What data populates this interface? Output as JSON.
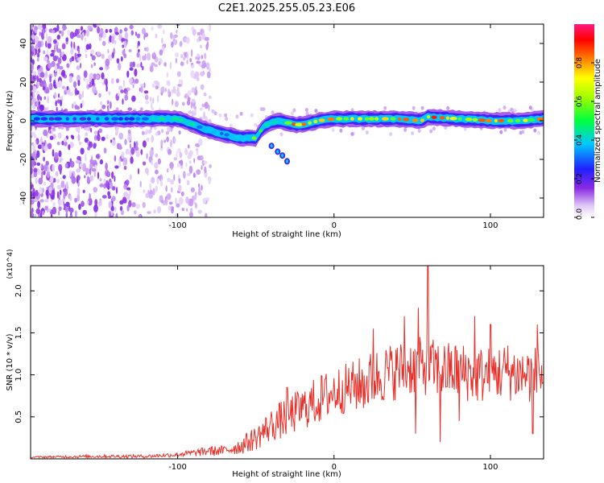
{
  "title": "C2E1.2025.255.05.23.E06",
  "chart_data": [
    {
      "type": "heatmap",
      "xlabel": "Height of straight line (km)",
      "ylabel": "Frequency (Hz)",
      "xlim": [
        -194,
        134
      ],
      "ylim": [
        -50,
        50
      ],
      "xticks": [
        -100,
        0,
        100
      ],
      "xtick_labels": [
        "-100",
        "0",
        "100"
      ],
      "yticks": [
        -40,
        -20,
        0,
        20,
        40
      ],
      "ytick_labels": [
        "-40",
        "-20",
        "0",
        "20",
        "40"
      ],
      "colorbar": {
        "label": "Normalized spectral amplitude",
        "range": [
          0,
          1
        ],
        "ticks": [
          0.0,
          0.2,
          0.4,
          0.6,
          0.8
        ],
        "tick_labels": [
          "0.0",
          "0.2",
          "0.4",
          "0.6",
          "0.8"
        ]
      },
      "ridge": {
        "name": "main-frequency-ridge",
        "x": [
          -194,
          -170,
          -150,
          -130,
          -110,
          -100,
          -90,
          -80,
          -70,
          -60,
          -50,
          -45,
          -40,
          -35,
          -30,
          -25,
          -20,
          -10,
          0,
          20,
          40,
          56,
          60,
          80,
          100,
          120,
          134
        ],
        "y": [
          1,
          1,
          1,
          1,
          1,
          1,
          -2,
          -5,
          -7,
          -9,
          -9,
          -3,
          -1,
          0,
          -1,
          -2,
          -2,
          0,
          1,
          1,
          1,
          0,
          2,
          1,
          0,
          0,
          1
        ],
        "amplitude": [
          0.25,
          0.3,
          0.3,
          0.35,
          0.5,
          0.55,
          0.5,
          0.45,
          0.45,
          0.5,
          0.6,
          0.65,
          0.6,
          0.55,
          0.6,
          0.95,
          0.9,
          0.8,
          0.85,
          0.8,
          0.85,
          0.85,
          0.9,
          0.85,
          0.85,
          0.8,
          0.8
        ]
      },
      "branch": {
        "name": "secondary-branch",
        "x": [
          -40,
          -36,
          -33,
          -30
        ],
        "y": [
          -13,
          -16,
          -18,
          -21
        ]
      }
    },
    {
      "type": "line",
      "xlabel": "Height of straight line (km)",
      "ylabel": "SNR (10 * v/v)",
      "y_multiplier": "(x10^4)",
      "xlim": [
        -194,
        134
      ],
      "ylim": [
        0,
        2.3
      ],
      "xticks": [
        -100,
        0,
        100
      ],
      "xtick_labels": [
        "-100",
        "0",
        "100"
      ],
      "yticks": [
        0.5,
        1.0,
        1.5,
        2.0
      ],
      "ytick_labels": [
        "0.5",
        "1.0",
        "1.5",
        "2.0"
      ],
      "series": [
        {
          "name": "SNR",
          "color": "#e8302a",
          "envelope_x": [
            -194,
            -150,
            -120,
            -100,
            -90,
            -80,
            -70,
            -60,
            -50,
            -40,
            -30,
            -20,
            -10,
            0,
            10,
            20,
            30,
            40,
            50,
            60,
            70,
            80,
            90,
            100,
            110,
            120,
            134
          ],
          "envelope_y": [
            0.02,
            0.03,
            0.03,
            0.05,
            0.07,
            0.09,
            0.1,
            0.15,
            0.25,
            0.4,
            0.5,
            0.6,
            0.7,
            0.8,
            0.85,
            0.9,
            1.0,
            1.05,
            1.1,
            1.1,
            1.05,
            1.05,
            1.0,
            1.0,
            1.05,
            1.0,
            1.0
          ],
          "spread_y": [
            0.01,
            0.02,
            0.02,
            0.03,
            0.04,
            0.06,
            0.06,
            0.1,
            0.15,
            0.2,
            0.25,
            0.25,
            0.3,
            0.3,
            0.3,
            0.35,
            0.35,
            0.35,
            0.35,
            0.35,
            0.35,
            0.35,
            0.35,
            0.35,
            0.35,
            0.35,
            0.35
          ],
          "peaks": [
            {
              "x": -97,
              "y": 0.07
            },
            {
              "x": -80,
              "y": 0.12
            },
            {
              "x": -30,
              "y": 0.85
            },
            {
              "x": 25,
              "y": 1.55
            },
            {
              "x": 45,
              "y": 1.7
            },
            {
              "x": 54,
              "y": 1.8
            },
            {
              "x": 60,
              "y": 2.3
            },
            {
              "x": 68,
              "y": 1.9
            },
            {
              "x": 90,
              "y": 1.7
            },
            {
              "x": 100,
              "y": 1.6
            },
            {
              "x": 130,
              "y": 1.6
            }
          ],
          "dips": [
            {
              "x": 52,
              "y": 0.3
            },
            {
              "x": 68,
              "y": 0.2
            },
            {
              "x": 80,
              "y": 0.45
            },
            {
              "x": 127,
              "y": 0.3
            }
          ]
        }
      ]
    }
  ]
}
